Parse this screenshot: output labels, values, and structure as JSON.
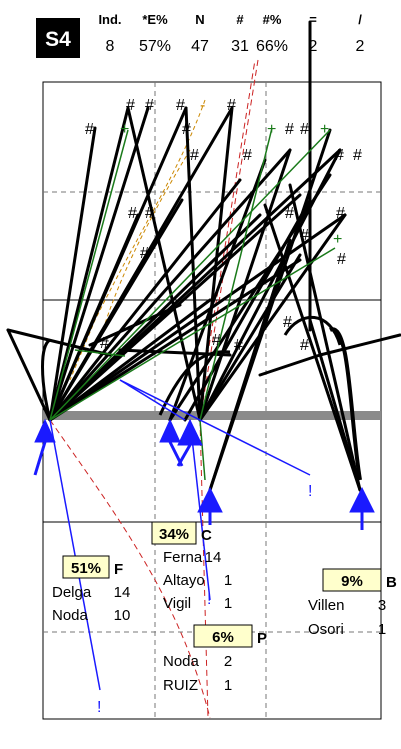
{
  "badge": "S4",
  "stats": {
    "headers": [
      "Ind.",
      "*E%",
      "N",
      "#",
      "#%",
      "=",
      "/"
    ],
    "values": [
      "8",
      "57%",
      "47",
      "31",
      "66%",
      "2",
      "2"
    ]
  },
  "zones": {
    "C": {
      "pct": "34%",
      "letter": "C",
      "rows": [
        {
          "name": "Ferna",
          "count": "14"
        },
        {
          "name": "Altayo",
          "count": "1"
        },
        {
          "name": "Vigil",
          "count": "1"
        }
      ]
    },
    "F": {
      "pct": "51%",
      "letter": "F",
      "rows": [
        {
          "name": "Delga",
          "count": "14"
        },
        {
          "name": "Noda",
          "count": "10"
        }
      ]
    },
    "B": {
      "pct": "9%",
      "letter": "B",
      "rows": [
        {
          "name": "Villen",
          "count": "3"
        },
        {
          "name": "Osori",
          "count": "1"
        }
      ]
    },
    "P": {
      "pct": "6%",
      "letter": "P",
      "rows": [
        {
          "name": "Noda",
          "count": "2"
        },
        {
          "name": "RUIZ",
          "count": "1"
        }
      ]
    }
  },
  "marks": {
    "hash": "#",
    "plus": "+",
    "dash": "-",
    "bang": "!"
  },
  "colors": {
    "black": "#000000",
    "green": "#1a7a1a",
    "blue": "#1a1aff",
    "red": "#cc2222",
    "orange": "#cc8800",
    "gray": "#888888",
    "box": "#ffffcc"
  }
}
